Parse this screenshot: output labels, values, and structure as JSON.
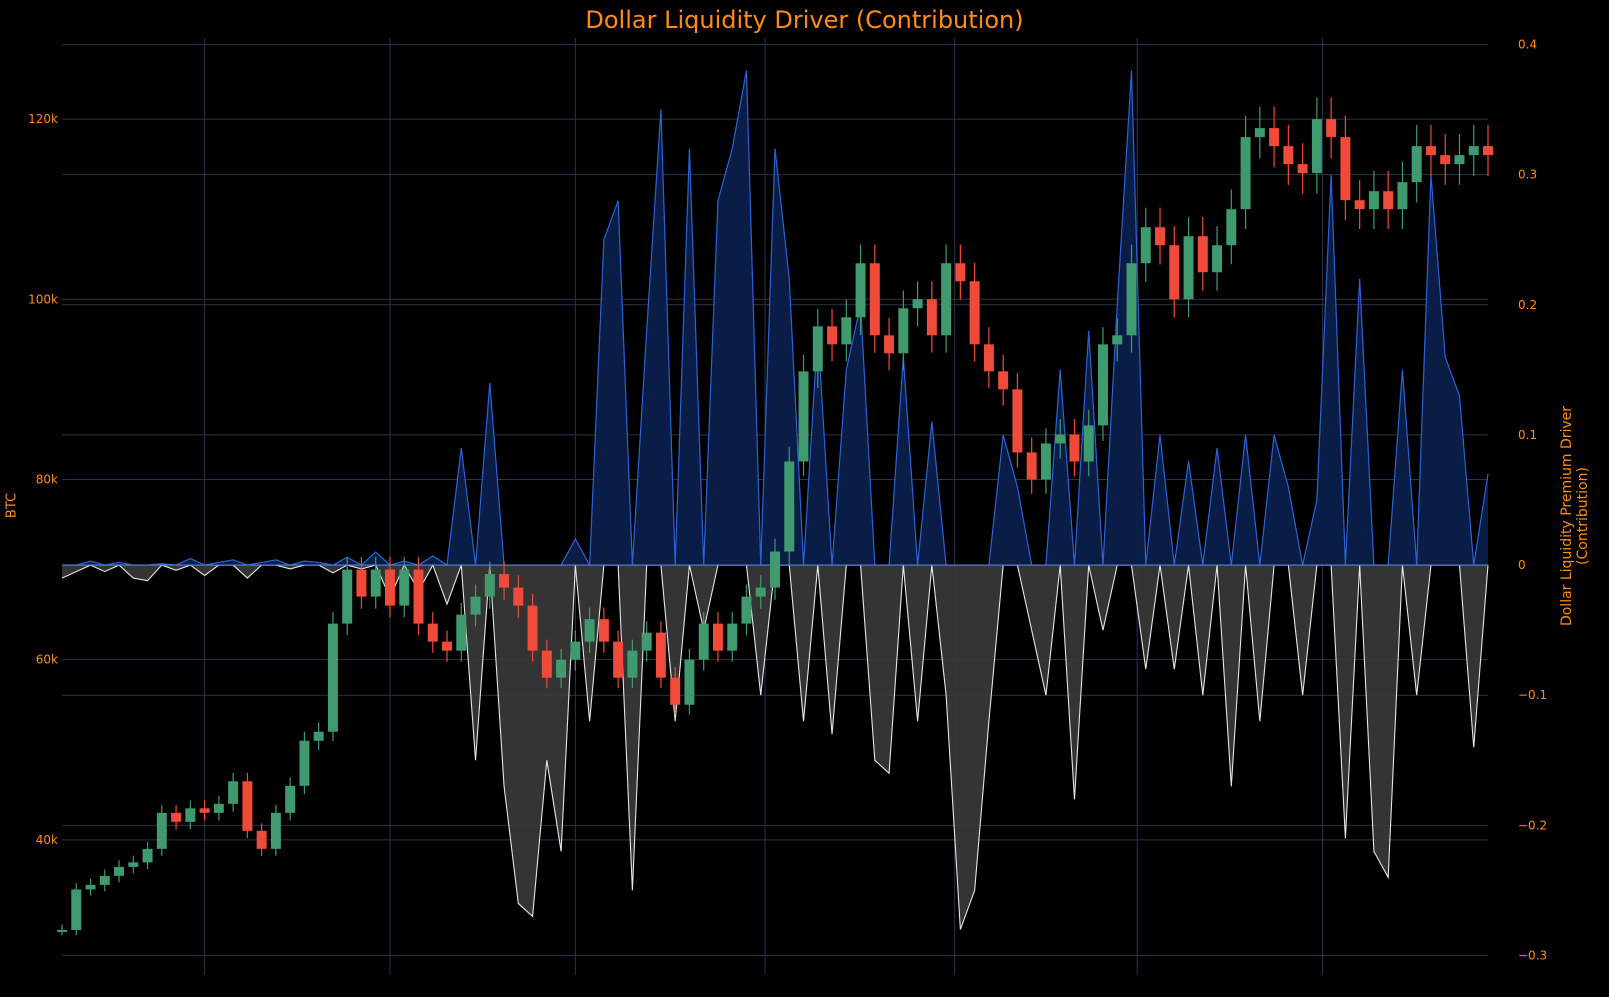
{
  "title": "Dollar Liquidity Driver (Contribution)",
  "colors": {
    "background": "#000000",
    "grid": "#2a3348",
    "text": "#ff8c1a",
    "up": "#3f9a70",
    "down": "#f04b3a",
    "positive_line": "#2d62d6",
    "positive_fill": "#0b1f4a",
    "negative_line": "#e6e6e6",
    "negative_fill": "#3a3a3a",
    "zero_line": "#5b7fd6"
  },
  "chart_data": {
    "type": "line",
    "ylabel_left": "BTC",
    "ylabel_right": "Dollar Liquidity Premium Driver (Contribution)",
    "y_left_range": [
      25000,
      129000
    ],
    "y_right_range": [
      -0.315,
      0.405
    ],
    "y_left_ticks": [
      40000,
      60000,
      80000,
      100000,
      120000
    ],
    "y_left_tick_labels": [
      "40k",
      "60k",
      "80k",
      "100k",
      "120k"
    ],
    "y_right_ticks": [
      -0.3,
      -0.2,
      -0.1,
      0,
      0.1,
      0.2,
      0.3,
      0.4
    ],
    "y_right_tick_labels": [
      "−0.3",
      "−0.2",
      "−0.1",
      "0",
      "0.1",
      "0.2",
      "0.3",
      "0.4"
    ],
    "x_range": [
      0,
      100
    ],
    "x_grid": [
      10,
      23,
      36,
      49.3,
      62.6,
      75.4,
      88.4
    ],
    "grid": true,
    "series": [
      {
        "kind": "candlestick_close",
        "x": [
          0,
          1,
          2,
          3,
          4,
          5,
          6,
          7,
          8,
          9,
          10,
          11,
          12,
          13,
          14,
          15,
          16,
          17,
          18,
          19,
          20,
          21,
          22,
          23,
          24,
          25,
          26,
          27,
          28,
          29,
          30,
          31,
          32,
          33,
          34,
          35,
          36,
          37,
          38,
          39,
          40,
          41,
          42,
          43,
          44,
          45,
          46,
          47,
          48,
          49,
          50,
          51,
          52,
          53,
          54,
          55,
          56,
          57,
          58,
          59,
          60,
          61,
          62,
          63,
          64,
          65,
          66,
          67,
          68,
          69,
          70,
          71,
          72,
          73,
          74,
          75,
          76,
          77,
          78,
          79,
          80,
          81,
          82,
          83,
          84,
          85,
          86,
          87,
          88,
          89,
          90,
          91,
          92,
          93,
          94,
          95,
          96,
          97,
          98,
          99,
          100
        ],
        "values": [
          30000,
          34500,
          35000,
          36000,
          37000,
          37500,
          39000,
          43000,
          42000,
          43500,
          43000,
          44000,
          46500,
          41000,
          39000,
          43000,
          46000,
          51000,
          52000,
          64000,
          70000,
          67000,
          70000,
          66000,
          70000,
          64000,
          62000,
          61000,
          65000,
          67000,
          69500,
          68000,
          66000,
          61000,
          58000,
          60000,
          62000,
          64500,
          62000,
          58000,
          61000,
          63000,
          58000,
          55000,
          60000,
          64000,
          61000,
          64000,
          67000,
          68000,
          72000,
          82000,
          92000,
          97000,
          95000,
          98000,
          104000,
          96000,
          94000,
          99000,
          100000,
          96000,
          104000,
          102000,
          95000,
          92000,
          90000,
          83000,
          80000,
          84000,
          85000,
          82000,
          86000,
          95000,
          96000,
          104000,
          108000,
          106000,
          100000,
          107000,
          103000,
          106000,
          110000,
          118000,
          119000,
          117000,
          115000,
          114000,
          120000,
          118000,
          111000,
          110000,
          112000,
          110000,
          113000,
          117000,
          116000,
          115000,
          116000,
          117000,
          116000
        ]
      },
      {
        "name": "Dollar Liquidity Premium Driver (Contribution)",
        "x": [
          0,
          1,
          2,
          3,
          4,
          5,
          6,
          7,
          8,
          9,
          10,
          11,
          12,
          13,
          14,
          15,
          16,
          17,
          18,
          19,
          20,
          21,
          22,
          23,
          24,
          25,
          26,
          27,
          28,
          29,
          30,
          31,
          32,
          33,
          34,
          35,
          36,
          37,
          38,
          39,
          40,
          41,
          42,
          43,
          44,
          45,
          46,
          47,
          48,
          49,
          50,
          51,
          52,
          53,
          54,
          55,
          56,
          57,
          58,
          59,
          60,
          61,
          62,
          63,
          64,
          65,
          66,
          67,
          68,
          69,
          70,
          71,
          72,
          73,
          74,
          75,
          76,
          77,
          78,
          79,
          80,
          81,
          82,
          83,
          84,
          85,
          86,
          87,
          88,
          89,
          90,
          91,
          92,
          93,
          94,
          95,
          96,
          97,
          98,
          99,
          100
        ],
        "values": [
          -0.01,
          -0.005,
          0.003,
          -0.005,
          0.002,
          -0.01,
          -0.012,
          0.001,
          -0.004,
          0.005,
          -0.008,
          0.002,
          0.004,
          -0.01,
          0.002,
          0.004,
          -0.003,
          0.003,
          0.002,
          -0.006,
          0.006,
          -0.003,
          0.01,
          -0.025,
          0.003,
          -0.02,
          0.007,
          -0.03,
          0.09,
          -0.15,
          0.14,
          -0.17,
          -0.26,
          -0.27,
          -0.15,
          -0.22,
          0.02,
          -0.12,
          0.25,
          0.28,
          -0.25,
          0.18,
          0.35,
          -0.12,
          0.32,
          -0.05,
          0.28,
          0.32,
          0.38,
          -0.1,
          0.32,
          0.22,
          -0.12,
          0.18,
          -0.13,
          0.15,
          0.2,
          -0.15,
          -0.16,
          0.16,
          -0.12,
          0.11,
          -0.1,
          -0.28,
          -0.25,
          -0.12,
          0.1,
          0.06,
          -0.05,
          -0.1,
          0.15,
          -0.18,
          0.18,
          -0.05,
          0.2,
          0.38,
          -0.08,
          0.1,
          -0.08,
          0.08,
          -0.1,
          0.09,
          -0.17,
          0.1,
          -0.12,
          0.1,
          0.06,
          -0.1,
          0.05,
          0.3,
          -0.21,
          0.22,
          -0.22,
          -0.24,
          0.15,
          -0.1,
          0.3,
          0.16,
          0.13,
          -0.14,
          0.07
        ]
      }
    ]
  }
}
